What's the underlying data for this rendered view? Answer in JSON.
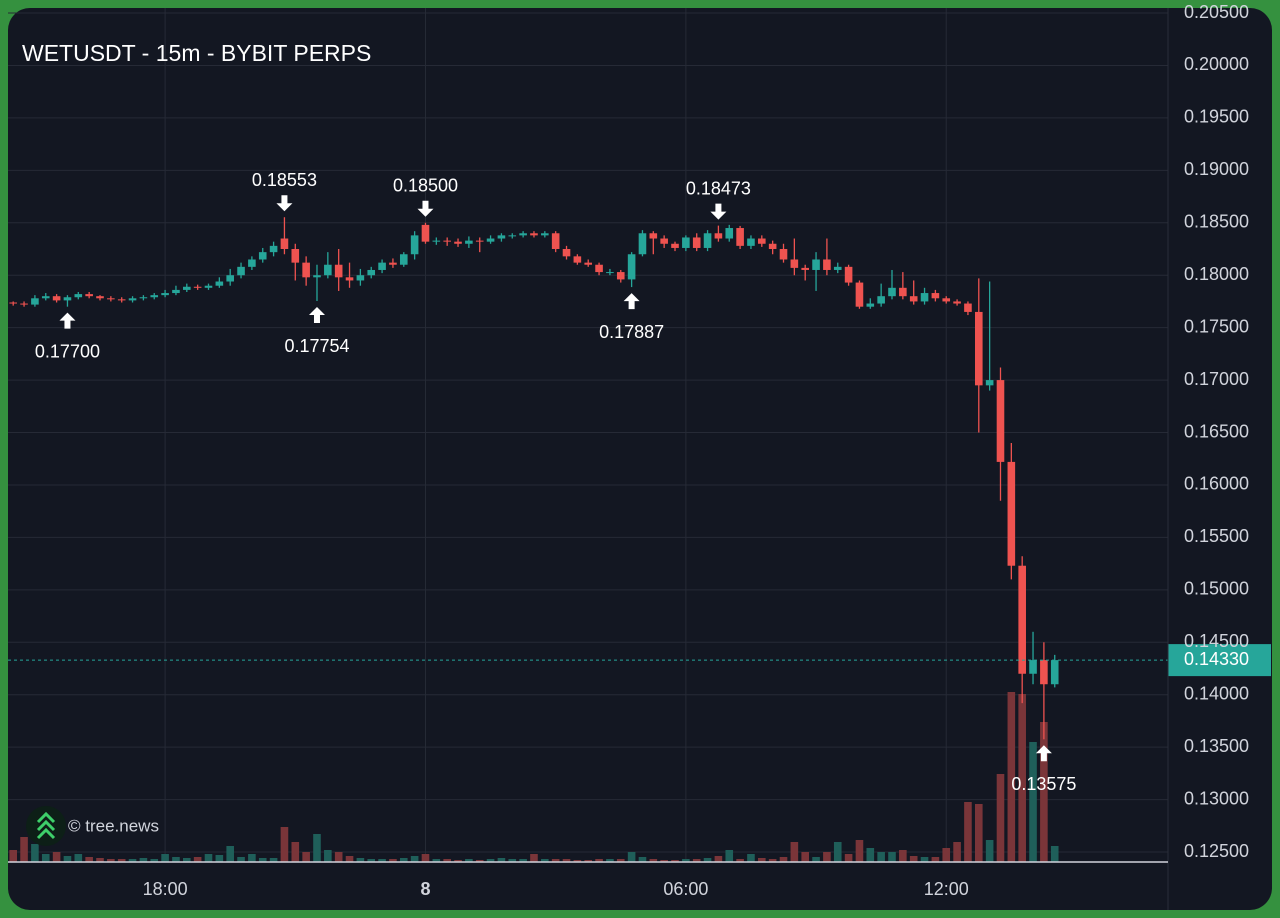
{
  "chart_data": {
    "type": "candlestick",
    "title": "WETUSDT - 15m - BYBIT PERPS",
    "watermark": "© tree.news",
    "up_color": "#26a69a",
    "down_color": "#ef5350",
    "volume_up_color": "#1f5f5a",
    "volume_down_color": "#7a3539",
    "grid": true,
    "x": [
      14.5,
      14.75,
      15,
      15.25,
      15.5,
      15.75,
      16,
      16.25,
      16.5,
      16.75,
      17,
      17.25,
      17.5,
      17.75,
      18,
      18.25,
      18.5,
      18.75,
      19,
      19.25,
      19.5,
      19.75,
      20,
      20.25,
      20.5,
      20.75,
      21,
      21.25,
      21.5,
      21.75,
      22,
      22.25,
      22.5,
      22.75,
      23,
      23.25,
      23.5,
      23.75,
      24,
      24.25,
      24.5,
      24.75,
      25,
      25.25,
      25.5,
      25.75,
      26,
      26.25,
      26.5,
      26.75,
      27,
      27.25,
      27.5,
      27.75,
      28,
      28.25,
      28.5,
      28.75,
      29,
      29.25,
      29.5,
      29.75,
      30,
      30.25,
      30.5,
      30.75,
      31,
      31.25,
      31.5,
      31.75,
      32,
      32.25,
      32.5,
      32.75,
      33,
      33.25,
      33.5,
      33.75,
      34,
      34.25,
      34.5,
      34.75,
      35,
      35.25,
      35.5,
      35.75,
      36,
      36.25,
      36.5,
      36.75,
      37,
      37.25,
      37.5,
      37.75,
      38,
      38.25,
      38.5
    ],
    "open": [
      0.1774,
      0.1773,
      0.1772,
      0.1778,
      0.178,
      0.1776,
      0.1779,
      0.1782,
      0.178,
      0.1778,
      0.1777,
      0.1776,
      0.1778,
      0.1779,
      0.1781,
      0.1783,
      0.1786,
      0.1789,
      0.1788,
      0.179,
      0.1794,
      0.18,
      0.1808,
      0.1815,
      0.1822,
      0.1835,
      0.1825,
      0.1812,
      0.1798,
      0.18,
      0.181,
      0.1798,
      0.1795,
      0.18,
      0.1805,
      0.1812,
      0.181,
      0.182,
      0.1848,
      0.1832,
      0.1833,
      0.1832,
      0.183,
      0.1833,
      0.1832,
      0.1835,
      0.1838,
      0.1838,
      0.184,
      0.1838,
      0.184,
      0.1825,
      0.1818,
      0.1812,
      0.181,
      0.1803,
      0.1803,
      0.1796,
      0.182,
      0.184,
      0.1835,
      0.183,
      0.1826,
      0.1836,
      0.1826,
      0.184,
      0.1835,
      0.1845,
      0.1828,
      0.1835,
      0.183,
      0.1825,
      0.1815,
      0.1807,
      0.1805,
      0.1815,
      0.1805,
      0.1808,
      0.1793,
      0.177,
      0.1773,
      0.178,
      0.1788,
      0.178,
      0.1775,
      0.1783,
      0.1778,
      0.1775,
      0.1773,
      0.1765,
      0.1695,
      0.17,
      0.1622,
      0.1523,
      0.142,
      0.1433,
      0.141
    ],
    "high": [
      0.1775,
      0.1775,
      0.1781,
      0.1783,
      0.1782,
      0.1781,
      0.1784,
      0.1784,
      0.1781,
      0.178,
      0.1779,
      0.178,
      0.1781,
      0.1783,
      0.1786,
      0.179,
      0.1792,
      0.1791,
      0.1792,
      0.1798,
      0.1806,
      0.1812,
      0.1818,
      0.1826,
      0.1832,
      0.18553,
      0.183,
      0.1818,
      0.181,
      0.1822,
      0.1825,
      0.1812,
      0.1806,
      0.1808,
      0.1815,
      0.1816,
      0.1822,
      0.1842,
      0.185,
      0.1836,
      0.1836,
      0.1835,
      0.1837,
      0.1836,
      0.1838,
      0.184,
      0.184,
      0.1842,
      0.1842,
      0.1842,
      0.1842,
      0.1828,
      0.182,
      0.1815,
      0.1812,
      0.1806,
      0.1805,
      0.1822,
      0.1843,
      0.1842,
      0.1838,
      0.1832,
      0.1838,
      0.184,
      0.1843,
      0.18473,
      0.1848,
      0.1847,
      0.1838,
      0.1838,
      0.1833,
      0.183,
      0.1835,
      0.181,
      0.1822,
      0.1835,
      0.1812,
      0.181,
      0.1795,
      0.1778,
      0.1792,
      0.1805,
      0.1803,
      0.1795,
      0.1788,
      0.1786,
      0.178,
      0.1777,
      0.1775,
      0.1797,
      0.1794,
      0.1712,
      0.164,
      0.1532,
      0.146,
      0.145,
      0.1438
    ],
    "low": [
      0.1771,
      0.177,
      0.177,
      0.1776,
      0.1774,
      0.177,
      0.1777,
      0.1778,
      0.1776,
      0.1775,
      0.1774,
      0.1774,
      0.1776,
      0.1777,
      0.1779,
      0.1781,
      0.1784,
      0.1786,
      0.1786,
      0.1788,
      0.179,
      0.1797,
      0.1805,
      0.1812,
      0.1818,
      0.182,
      0.1795,
      0.179,
      0.17754,
      0.1797,
      0.1785,
      0.1788,
      0.179,
      0.1797,
      0.1802,
      0.1807,
      0.1808,
      0.1815,
      0.183,
      0.1829,
      0.1828,
      0.1827,
      0.1826,
      0.1822,
      0.183,
      0.1832,
      0.1835,
      0.1836,
      0.1836,
      0.1836,
      0.1822,
      0.1815,
      0.181,
      0.1808,
      0.18,
      0.18,
      0.1793,
      0.17887,
      0.1818,
      0.182,
      0.1826,
      0.1823,
      0.1823,
      0.1823,
      0.1823,
      0.1832,
      0.1832,
      0.1825,
      0.1825,
      0.1827,
      0.182,
      0.1812,
      0.18,
      0.1795,
      0.1785,
      0.18,
      0.1802,
      0.179,
      0.1768,
      0.1768,
      0.177,
      0.1777,
      0.1777,
      0.1772,
      0.1772,
      0.1775,
      0.1773,
      0.1771,
      0.1762,
      0.165,
      0.169,
      0.1585,
      0.151,
      0.1392,
      0.141,
      0.13575,
      0.1407
    ],
    "close": [
      0.1773,
      0.1772,
      0.1778,
      0.178,
      0.1776,
      0.1779,
      0.1782,
      0.178,
      0.1778,
      0.1777,
      0.1776,
      0.1778,
      0.1779,
      0.1781,
      0.1783,
      0.1786,
      0.1789,
      0.1788,
      0.179,
      0.1794,
      0.18,
      0.1808,
      0.1815,
      0.1822,
      0.1828,
      0.1825,
      0.1812,
      0.1798,
      0.18,
      0.181,
      0.1798,
      0.1795,
      0.18,
      0.1805,
      0.1812,
      0.181,
      0.182,
      0.1838,
      0.1832,
      0.1833,
      0.1832,
      0.183,
      0.1833,
      0.1832,
      0.1835,
      0.1838,
      0.1838,
      0.184,
      0.1838,
      0.184,
      0.1825,
      0.1818,
      0.1812,
      0.181,
      0.1803,
      0.1803,
      0.1796,
      0.182,
      0.184,
      0.1835,
      0.183,
      0.1826,
      0.1836,
      0.1826,
      0.184,
      0.1835,
      0.1845,
      0.1828,
      0.1835,
      0.183,
      0.1825,
      0.1815,
      0.1807,
      0.1805,
      0.1815,
      0.1805,
      0.1808,
      0.1793,
      0.177,
      0.1773,
      0.178,
      0.1788,
      0.178,
      0.1775,
      0.1783,
      0.1778,
      0.1775,
      0.1773,
      0.1765,
      0.1695,
      0.17,
      0.1622,
      0.1523,
      0.142,
      0.1433,
      0.141,
      0.1433
    ],
    "volume": [
      12,
      25,
      18,
      8,
      10,
      6,
      8,
      5,
      4,
      3,
      3,
      3,
      4,
      3,
      8,
      5,
      4,
      5,
      8,
      7,
      16,
      5,
      8,
      4,
      4,
      35,
      20,
      10,
      28,
      12,
      10,
      6,
      4,
      3,
      3,
      3,
      4,
      6,
      8,
      3,
      3,
      2,
      3,
      2,
      3,
      4,
      3,
      3,
      8,
      3,
      3,
      3,
      2,
      2,
      3,
      3,
      3,
      10,
      5,
      3,
      2,
      2,
      3,
      3,
      4,
      6,
      12,
      3,
      8,
      4,
      3,
      5,
      20,
      10,
      5,
      10,
      20,
      8,
      22,
      14,
      10,
      10,
      12,
      6,
      5,
      5,
      14,
      20,
      60,
      58,
      22,
      88,
      170,
      168,
      120,
      140,
      16
    ],
    "xlim": [
      14.38,
      41.11
    ],
    "xticks": [
      {
        "value": 18,
        "label": "18:00"
      },
      {
        "value": 24,
        "label": "8"
      },
      {
        "value": 30,
        "label": "06:00"
      },
      {
        "value": 36,
        "label": "12:00"
      }
    ],
    "ylim": [
      0.12405,
      0.20548
    ],
    "yticks": [
      {
        "value": 0.125,
        "label": "0.12500"
      },
      {
        "value": 0.13,
        "label": "0.13000"
      },
      {
        "value": 0.135,
        "label": "0.13500"
      },
      {
        "value": 0.14,
        "label": "0.14000"
      },
      {
        "value": 0.145,
        "label": "0.14500"
      },
      {
        "value": 0.15,
        "label": "0.15000"
      },
      {
        "value": 0.155,
        "label": "0.15500"
      },
      {
        "value": 0.16,
        "label": "0.16000"
      },
      {
        "value": 0.165,
        "label": "0.16500"
      },
      {
        "value": 0.17,
        "label": "0.17000"
      },
      {
        "value": 0.175,
        "label": "0.17500"
      },
      {
        "value": 0.18,
        "label": "0.18000"
      },
      {
        "value": 0.185,
        "label": "0.18500"
      },
      {
        "value": 0.19,
        "label": "0.19000"
      },
      {
        "value": 0.195,
        "label": "0.19500"
      },
      {
        "value": 0.2,
        "label": "0.20000"
      },
      {
        "value": 0.205,
        "label": "0.20500"
      }
    ],
    "last_price": {
      "value": 0.1433,
      "label": "0.14330"
    },
    "annotations": [
      {
        "value": 0.177,
        "label": "0.17700",
        "x": 15.75,
        "side": "below"
      },
      {
        "value": 0.18553,
        "label": "0.18553",
        "x": 20.75,
        "side": "above"
      },
      {
        "value": 0.17754,
        "label": "0.17754",
        "x": 21.5,
        "side": "below"
      },
      {
        "value": 0.185,
        "label": "0.18500",
        "x": 24,
        "side": "above"
      },
      {
        "value": 0.17887,
        "label": "0.17887",
        "x": 28.75,
        "side": "below"
      },
      {
        "value": 0.18473,
        "label": "0.18473",
        "x": 30.75,
        "side": "above"
      },
      {
        "value": 0.13575,
        "label": "0.13575",
        "x": 38.25,
        "side": "below"
      }
    ]
  }
}
